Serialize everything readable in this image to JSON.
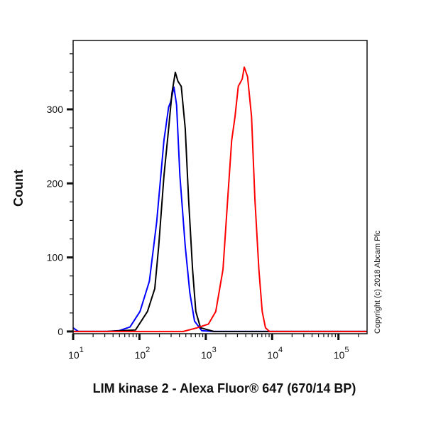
{
  "chart_data": {
    "type": "line",
    "title": "",
    "xlabel": "LIM kinase 2 - Alexa Fluor® 647 (670/14 BP)",
    "ylabel": "Count",
    "xscale": "log",
    "xlim": [
      10,
      270000
    ],
    "ylim": [
      -3,
      393
    ],
    "x_ticks": [
      {
        "base": "10",
        "exp": "1",
        "value": 10
      },
      {
        "base": "10",
        "exp": "2",
        "value": 100
      },
      {
        "base": "10",
        "exp": "3",
        "value": 1000
      },
      {
        "base": "10",
        "exp": "4",
        "value": 10000
      },
      {
        "base": "10",
        "exp": "5",
        "value": 100000
      }
    ],
    "y_ticks": [
      {
        "label": "0",
        "value": 0
      },
      {
        "label": "100",
        "value": 100
      },
      {
        "label": "200",
        "value": 200
      },
      {
        "label": "300",
        "value": 300
      }
    ],
    "grid": false,
    "annotations": [
      "Copyright (c) 2018 Abcam Plc"
    ],
    "series": [
      {
        "color": "#0000ff",
        "x": [
          10,
          12,
          32,
          49,
          72,
          102,
          141,
          182,
          234,
          275,
          295,
          331,
          363,
          407,
          490,
          575,
          676,
          871,
          1318,
          270000
        ],
        "y": [
          5,
          0,
          0,
          1,
          6,
          27,
          68,
          148,
          258,
          303,
          310,
          330,
          306,
          210,
          115,
          52,
          14,
          1,
          0,
          0
        ]
      },
      {
        "color": "#000000",
        "x": [
          10,
          32,
          87,
          132,
          170,
          195,
          234,
          275,
          309,
          347,
          380,
          427,
          490,
          550,
          631,
          708,
          832,
          1318,
          270000
        ],
        "y": [
          0,
          0,
          2,
          27,
          58,
          115,
          210,
          274,
          322,
          350,
          338,
          331,
          274,
          179,
          84,
          27,
          5,
          0,
          0
        ]
      },
      {
        "color": "#ff0000",
        "x": [
          10,
          457,
          741,
          1096,
          1413,
          1820,
          2138,
          2455,
          2754,
          3090,
          3548,
          3802,
          4266,
          4898,
          5495,
          6310,
          7079,
          7943,
          9120,
          270000
        ],
        "y": [
          0,
          0,
          5,
          10,
          27,
          84,
          179,
          258,
          290,
          331,
          341,
          357,
          344,
          290,
          179,
          84,
          27,
          5,
          0,
          0
        ]
      }
    ]
  }
}
